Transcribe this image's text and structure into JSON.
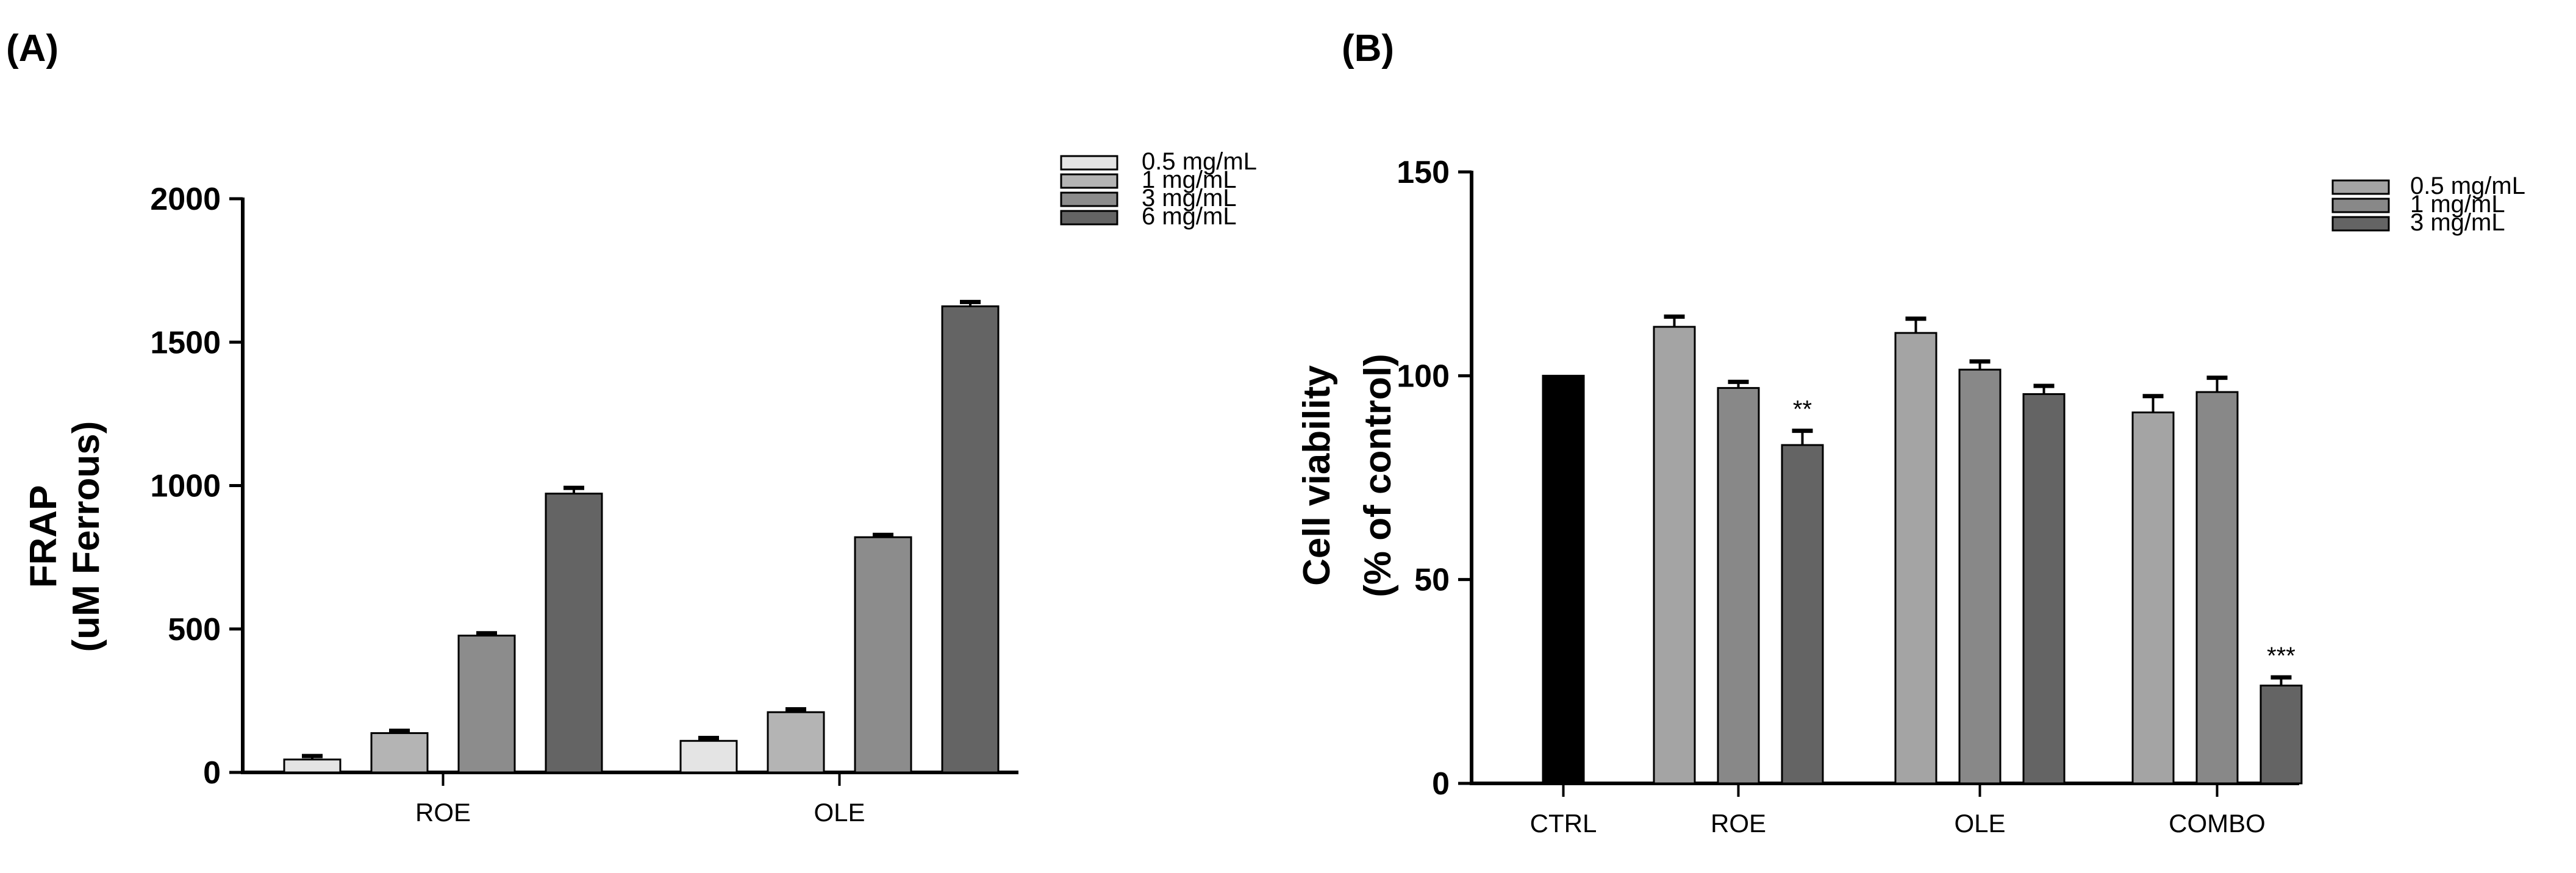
{
  "chart_data": [
    {
      "type": "bar",
      "panel_label": "(A)",
      "ylabel_lines": [
        "FRAP",
        "(uM Ferrous)"
      ],
      "xlabel": "",
      "ylim": [
        0,
        2000
      ],
      "yticks": [
        "0",
        "500",
        "1000",
        "1500",
        "2000"
      ],
      "ytick_values": [
        0,
        500,
        1000,
        1500,
        2000
      ],
      "categories": [
        "ROE",
        "OLE"
      ],
      "series": [
        {
          "name": "0.5 mg/mL",
          "color": "#e4e4e4",
          "values": [
            45,
            110
          ],
          "errors": [
            12,
            10
          ]
        },
        {
          "name": "1 mg/mL",
          "color": "#b4b4b4",
          "values": [
            137,
            210
          ],
          "errors": [
            8,
            10
          ]
        },
        {
          "name": "3 mg/mL",
          "color": "#8c8c8c",
          "values": [
            477,
            820
          ],
          "errors": [
            8,
            8
          ]
        },
        {
          "name": "6 mg/mL",
          "color": "#646464",
          "values": [
            972,
            1625
          ],
          "errors": [
            20,
            15
          ]
        }
      ],
      "legend_position": "top-right"
    },
    {
      "type": "bar",
      "panel_label": "(B)",
      "ylabel_lines": [
        "Cell viability",
        "(% of control)"
      ],
      "xlabel": "",
      "ylim": [
        0,
        150
      ],
      "yticks": [
        "0",
        "50",
        "100",
        "150"
      ],
      "ytick_values": [
        0,
        50,
        100,
        150
      ],
      "control": {
        "name": "CTRL",
        "value": 100,
        "color": "#000000"
      },
      "categories": [
        "ROE",
        "OLE",
        "COMBO"
      ],
      "series": [
        {
          "name": "0.5 mg/mL",
          "color": "#a4a4a4",
          "values": [
            112,
            110.5,
            91
          ],
          "errors": [
            2.5,
            3.5,
            4
          ]
        },
        {
          "name": "1 mg/mL",
          "color": "#888888",
          "values": [
            97,
            101.5,
            96
          ],
          "errors": [
            1.5,
            2,
            3.5
          ]
        },
        {
          "name": "3 mg/mL",
          "color": "#646464",
          "values": [
            83,
            95.5,
            24
          ],
          "errors": [
            3.5,
            2,
            2
          ]
        }
      ],
      "annotations": [
        {
          "category": "ROE",
          "series": "3 mg/mL",
          "text": "**"
        },
        {
          "category": "COMBO",
          "series": "3 mg/mL",
          "text": "***"
        }
      ],
      "legend_position": "top-right"
    }
  ]
}
